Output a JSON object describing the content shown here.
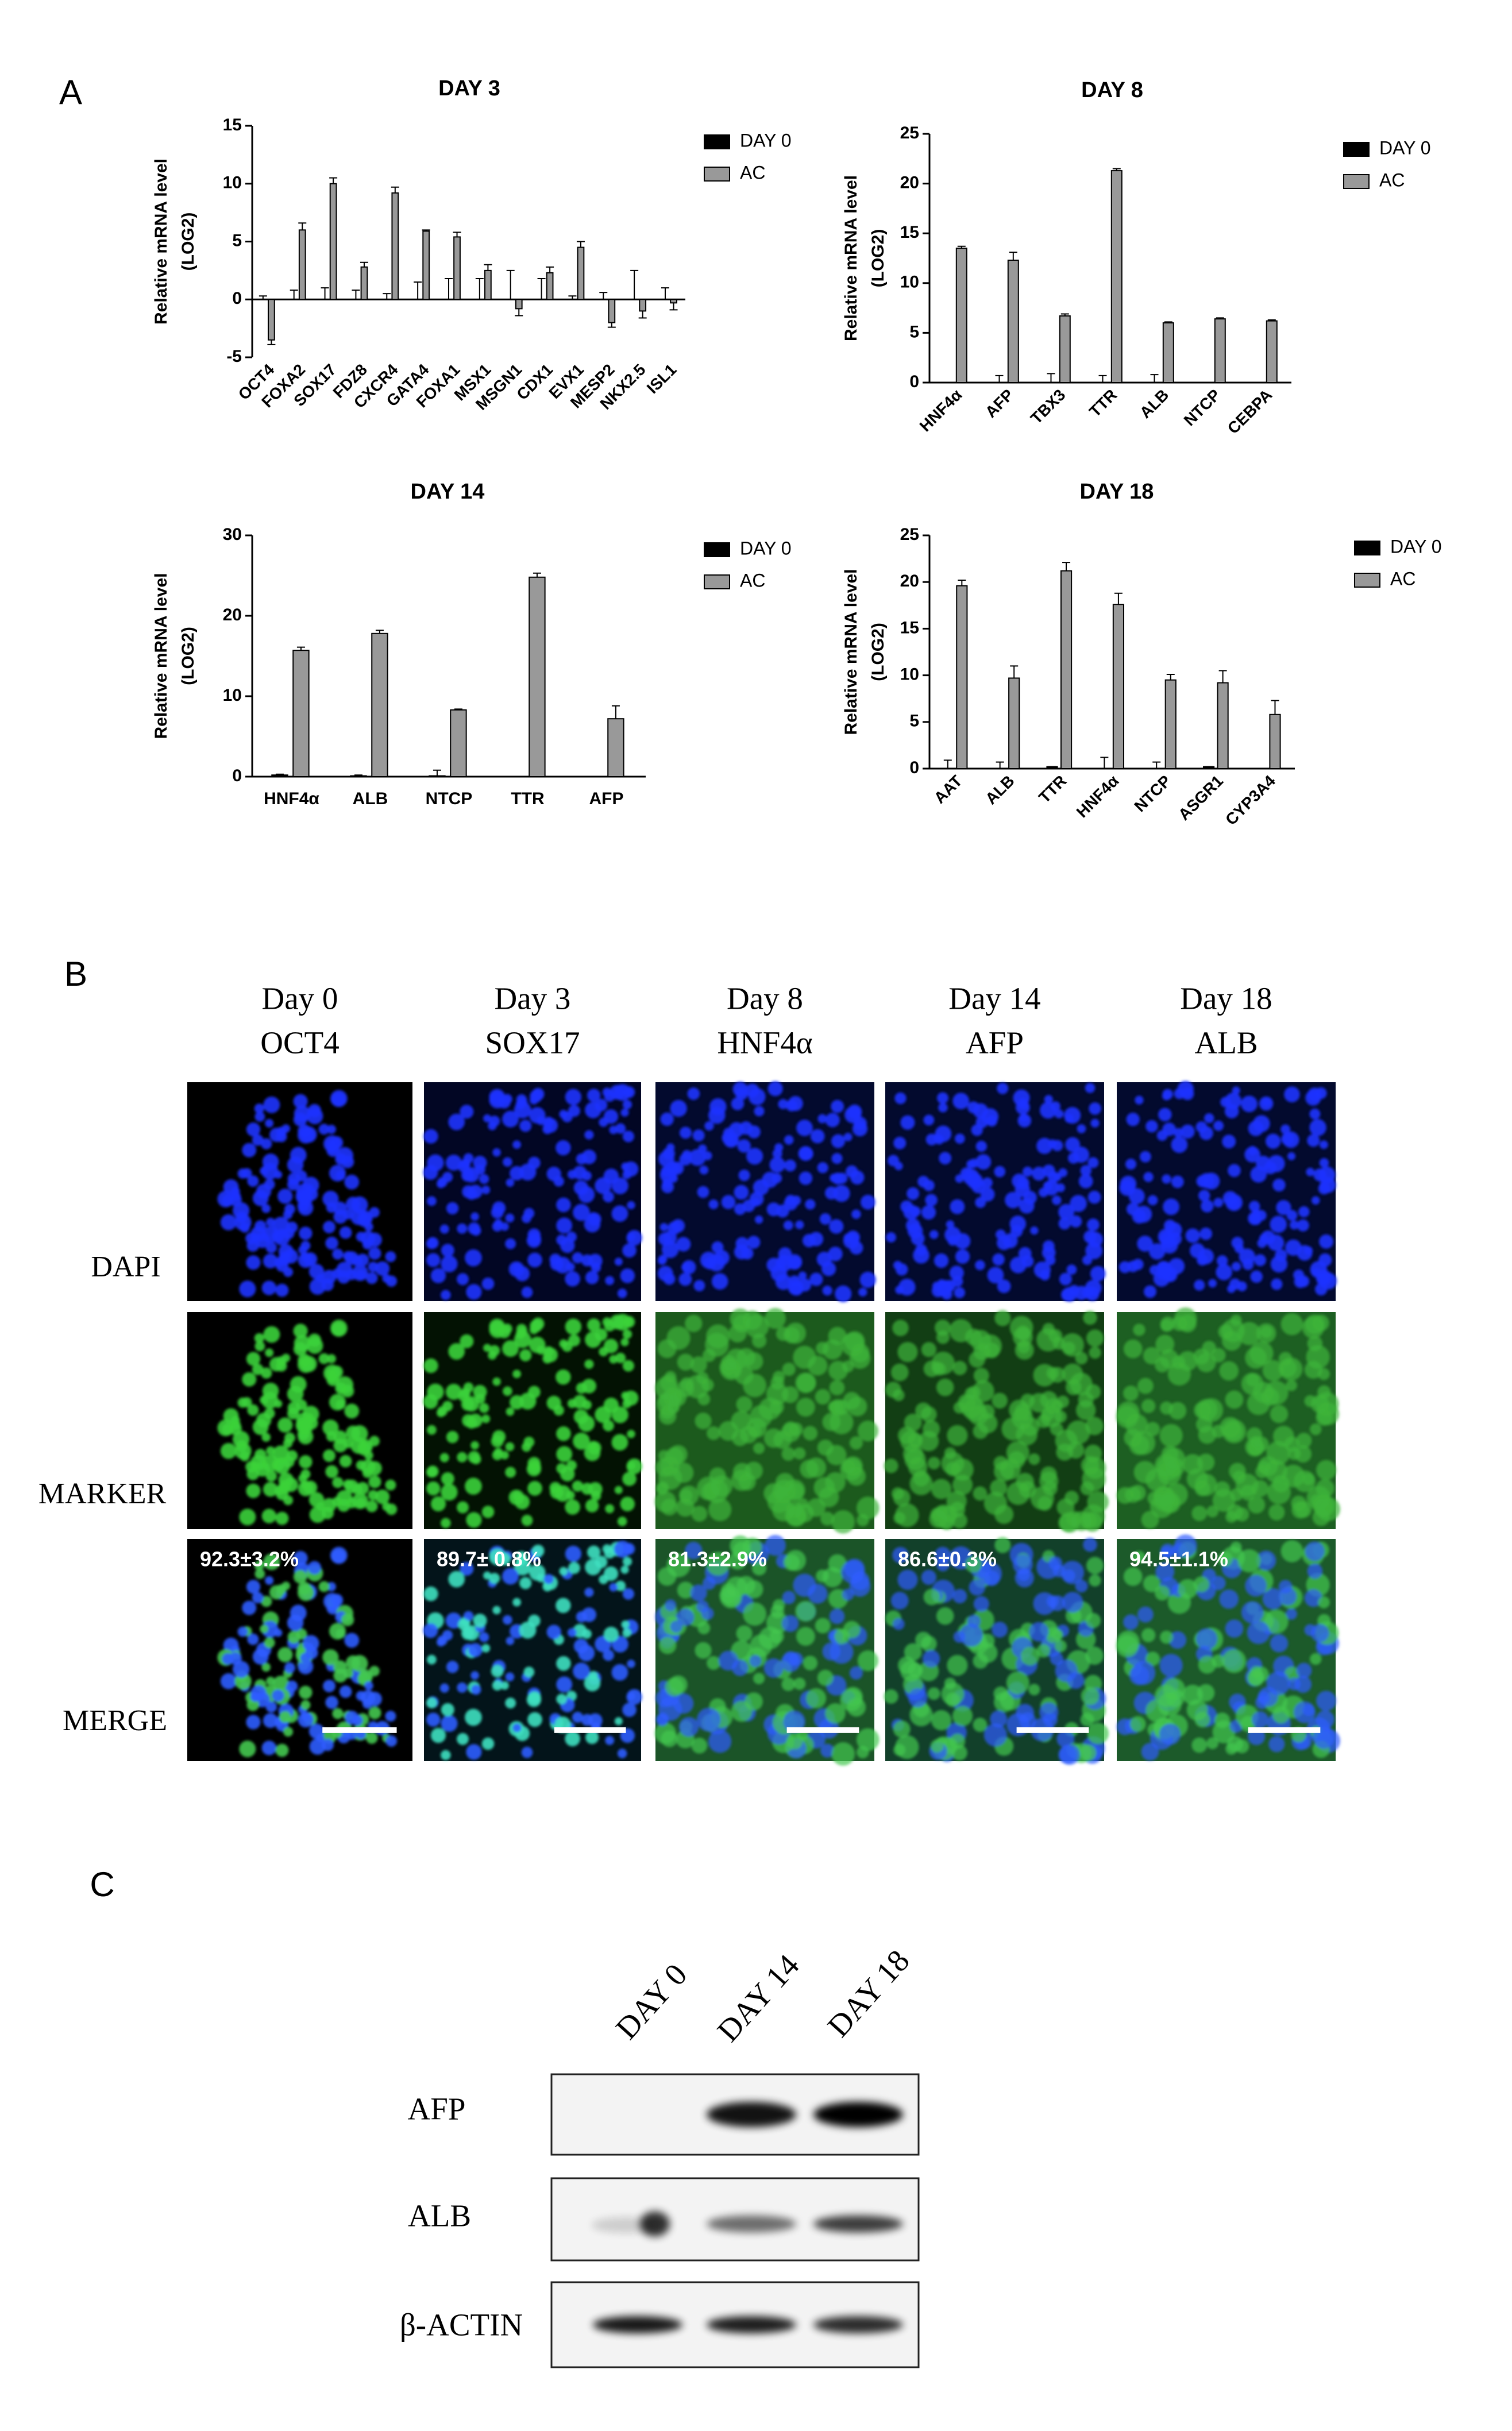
{
  "panel_a": {
    "label": "A"
  },
  "chart_data": [
    {
      "type": "bar",
      "title": "DAY 3",
      "y_label": [
        "Relative mRNA level",
        "(LOG2)"
      ],
      "categories": [
        "OCT4",
        "FOXA2",
        "SOX17",
        "FDZ8",
        "CXCR4",
        "GATA4",
        "FOXA1",
        "MSX1",
        "MSGN1",
        "CDX1",
        "EVX1",
        "MESP2",
        "NKX2.5",
        "ISL1"
      ],
      "series": [
        {
          "name": "DAY 0",
          "color": "#000000",
          "values": [
            0,
            0,
            0,
            0,
            0,
            0,
            0,
            0,
            0,
            0,
            0,
            0,
            0,
            0
          ],
          "errors": [
            0.3,
            0.8,
            1,
            0.8,
            0.5,
            1.5,
            1.8,
            1.8,
            2.5,
            1.8,
            0.3,
            0.6,
            2.5,
            1
          ]
        },
        {
          "name": "AC",
          "color": "#999999",
          "values": [
            -3.5,
            6,
            10,
            2.8,
            9.2,
            5.9,
            5.4,
            2.5,
            -0.8,
            2.3,
            4.5,
            -2,
            -1,
            -0.3
          ],
          "errors": [
            0.4,
            0.6,
            0.5,
            0.4,
            0.5,
            0.1,
            0.4,
            0.5,
            0.6,
            0.5,
            0.5,
            0.4,
            0.6,
            0.6
          ]
        }
      ],
      "ylim": [
        -5,
        15
      ],
      "yticks": [
        -5,
        0,
        5,
        10,
        15
      ]
    },
    {
      "type": "bar",
      "title": "DAY 8",
      "y_label": [
        "Relative mRNA level",
        "(LOG2)"
      ],
      "categories": [
        "HNF4α",
        "AFP",
        "TBX3",
        "TTR",
        "ALB",
        "NTCP",
        "CEBPA"
      ],
      "series": [
        {
          "name": "DAY 0",
          "color": "#000000",
          "values": [
            0,
            0,
            0,
            0,
            0,
            0,
            0
          ],
          "errors": [
            0,
            0.7,
            0.9,
            0.7,
            0.8,
            0,
            0
          ]
        },
        {
          "name": "AC",
          "color": "#999999",
          "values": [
            13.5,
            12.3,
            6.7,
            21.3,
            6.0,
            6.4,
            6.2
          ],
          "errors": [
            0.2,
            0.8,
            0.2,
            0.2,
            0.1,
            0.1,
            0.1
          ]
        }
      ],
      "ylim": [
        0,
        25
      ],
      "yticks": [
        0,
        5,
        10,
        15,
        20,
        25
      ]
    },
    {
      "type": "bar",
      "title": "DAY 14",
      "y_label": [
        "Relative mRNA level",
        "(LOG2)"
      ],
      "categories": [
        "HNF4α",
        "ALB",
        "NTCP",
        "TTR",
        "AFP"
      ],
      "series": [
        {
          "name": "DAY 0",
          "color": "#000000",
          "values": [
            0.2,
            0.1,
            0.1,
            0,
            0
          ],
          "errors": [
            0.1,
            0.1,
            0.7,
            0,
            0
          ]
        },
        {
          "name": "AC",
          "color": "#999999",
          "values": [
            15.7,
            17.8,
            8.3,
            24.8,
            7.2
          ],
          "errors": [
            0.4,
            0.4,
            0.1,
            0.5,
            1.6
          ]
        }
      ],
      "ylim": [
        0,
        30
      ],
      "yticks": [
        0,
        10,
        20,
        30
      ]
    },
    {
      "type": "bar",
      "title": "DAY 18",
      "y_label": [
        "Relative mRNA level",
        "(LOG2)"
      ],
      "categories": [
        "AAT",
        "ALB",
        "TTR",
        "HNF4α",
        "NTCP",
        "ASGR1",
        "CYP3A4"
      ],
      "series": [
        {
          "name": "DAY 0",
          "color": "#000000",
          "values": [
            0,
            0,
            0.2,
            0,
            0,
            0.2,
            0
          ],
          "errors": [
            0.9,
            0.7,
            0,
            1.2,
            0.7,
            0,
            0
          ]
        },
        {
          "name": "AC",
          "color": "#999999",
          "values": [
            19.6,
            9.7,
            21.2,
            17.6,
            9.5,
            9.2,
            5.8
          ],
          "errors": [
            0.6,
            1.3,
            0.9,
            1.2,
            0.6,
            1.3,
            1.5
          ]
        }
      ],
      "ylim": [
        0,
        25
      ],
      "yticks": [
        0,
        5,
        10,
        15,
        20,
        25
      ]
    }
  ],
  "panel_b": {
    "label": "B",
    "columns": [
      {
        "day": "Day 0",
        "marker": "OCT4",
        "percent": "92.3±3.2%"
      },
      {
        "day": "Day 3",
        "marker": "SOX17",
        "percent": "89.7± 0.8%"
      },
      {
        "day": "Day 8",
        "marker": "HNF4α",
        "percent": "81.3±2.9%"
      },
      {
        "day": "Day 14",
        "marker": "AFP",
        "percent": "86.6±0.3%"
      },
      {
        "day": "Day 18",
        "marker": "ALB",
        "percent": "94.5±1.1%"
      }
    ],
    "rows": [
      "DAPI",
      "MARKER",
      "MERGE"
    ]
  },
  "panel_c": {
    "label": "C",
    "lanes": [
      "DAY 0",
      "DAY 14",
      "DAY 18"
    ],
    "rows": [
      "AFP",
      "ALB",
      "β-ACTIN"
    ]
  }
}
